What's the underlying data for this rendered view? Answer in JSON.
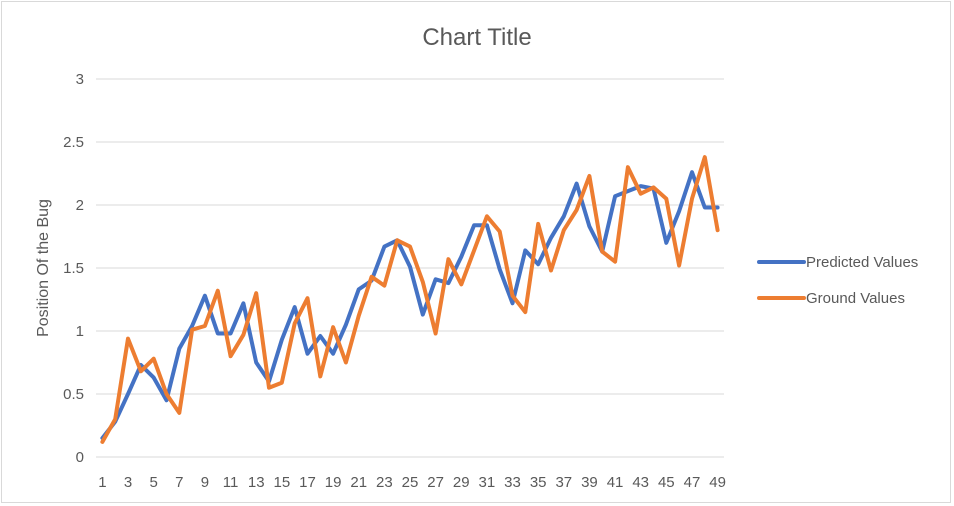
{
  "chart_data": {
    "type": "line",
    "title": "Chart Title",
    "xlabel": "",
    "ylabel": "Position Of the Bug",
    "ylim": [
      0,
      3
    ],
    "yticks": [
      "0",
      "0.5",
      "1",
      "1.5",
      "2",
      "2.5",
      "3"
    ],
    "ytick_values": [
      0,
      0.5,
      1,
      1.5,
      2,
      2.5,
      3
    ],
    "x": [
      1,
      2,
      3,
      4,
      5,
      6,
      7,
      8,
      9,
      10,
      11,
      12,
      13,
      14,
      15,
      16,
      17,
      18,
      19,
      20,
      21,
      22,
      23,
      24,
      25,
      26,
      27,
      28,
      29,
      30,
      31,
      32,
      33,
      34,
      35,
      36,
      37,
      38,
      39,
      40,
      41,
      42,
      43,
      44,
      45,
      46,
      47,
      48,
      49
    ],
    "xtick_labels": [
      "1",
      "3",
      "5",
      "7",
      "9",
      "11",
      "13",
      "15",
      "17",
      "19",
      "21",
      "23",
      "25",
      "27",
      "29",
      "31",
      "33",
      "35",
      "37",
      "39",
      "41",
      "43",
      "45",
      "47",
      "49"
    ],
    "grid": "horizontal",
    "legend_position": "right",
    "series": [
      {
        "name": "Predicted Values",
        "color": "#4472C4",
        "values": [
          0.15,
          0.28,
          0.5,
          0.73,
          0.63,
          0.45,
          0.86,
          1.04,
          1.28,
          0.98,
          0.98,
          1.22,
          0.75,
          0.6,
          0.93,
          1.19,
          0.82,
          0.96,
          0.82,
          1.05,
          1.33,
          1.4,
          1.67,
          1.72,
          1.51,
          1.13,
          1.41,
          1.38,
          1.59,
          1.84,
          1.84,
          1.49,
          1.22,
          1.64,
          1.53,
          1.74,
          1.91,
          2.17,
          1.83,
          1.63,
          2.07,
          2.11,
          2.15,
          2.13,
          1.7,
          1.95,
          2.26,
          1.98,
          1.98
        ]
      },
      {
        "name": "Ground Values",
        "color": "#ED7D31",
        "values": [
          0.12,
          0.3,
          0.94,
          0.68,
          0.78,
          0.5,
          0.35,
          1.01,
          1.04,
          1.32,
          0.8,
          0.97,
          1.3,
          0.55,
          0.59,
          1.06,
          1.26,
          0.64,
          1.03,
          0.75,
          1.12,
          1.43,
          1.36,
          1.72,
          1.67,
          1.39,
          0.98,
          1.57,
          1.37,
          1.64,
          1.91,
          1.79,
          1.28,
          1.15,
          1.85,
          1.48,
          1.8,
          1.96,
          2.23,
          1.63,
          1.55,
          2.3,
          2.09,
          2.14,
          2.05,
          1.52,
          2.05,
          2.38,
          1.8
        ]
      }
    ]
  }
}
